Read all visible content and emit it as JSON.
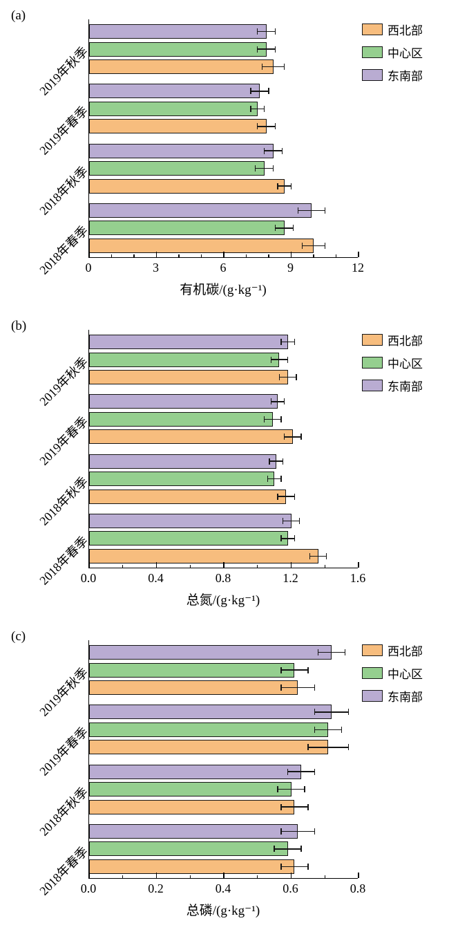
{
  "figure": {
    "panels": [
      "(a)",
      "(b)",
      "(c)"
    ]
  },
  "legend": {
    "position": "top-right",
    "items": [
      {
        "label": "西北部",
        "color": "#F7BD7E"
      },
      {
        "label": "中心区",
        "color": "#95CF8F"
      },
      {
        "label": "东南部",
        "color": "#B9ACD2"
      }
    ]
  },
  "chart_data": [
    {
      "type": "bar",
      "orientation": "horizontal",
      "panel": "(a)",
      "title": "",
      "xlabel": "有机碳/(g·kg⁻¹)",
      "ylabel": "",
      "xlim": [
        0,
        12
      ],
      "xticks": [
        0,
        3,
        6,
        9,
        12
      ],
      "xtick_labels": [
        "0",
        "3",
        "6",
        "9",
        "12"
      ],
      "minor_step": 1,
      "grid": false,
      "categories": [
        "2019年秋季",
        "2019年春季",
        "2018年秋季",
        "2018年春季"
      ],
      "series": [
        {
          "name": "西北部",
          "color": "#F7BD7E",
          "values": [
            8.2,
            7.9,
            8.7,
            10.0
          ],
          "errors": [
            0.5,
            0.4,
            0.3,
            0.5
          ]
        },
        {
          "name": "中心区",
          "color": "#95CF8F",
          "values": [
            7.9,
            7.5,
            7.8,
            8.7
          ],
          "errors": [
            0.4,
            0.3,
            0.4,
            0.4
          ]
        },
        {
          "name": "东南部",
          "color": "#B9ACD2",
          "values": [
            7.9,
            7.6,
            8.2,
            9.9
          ],
          "errors": [
            0.4,
            0.4,
            0.4,
            0.6
          ]
        }
      ]
    },
    {
      "type": "bar",
      "orientation": "horizontal",
      "panel": "(b)",
      "title": "",
      "xlabel": "总氮/(g·kg⁻¹)",
      "ylabel": "",
      "xlim": [
        0,
        1.6
      ],
      "xticks": [
        0,
        0.4,
        0.8,
        1.2,
        1.6
      ],
      "xtick_labels": [
        "0.0",
        "0.4",
        "0.8",
        "1.2",
        "1.6"
      ],
      "minor_step": 0.2,
      "grid": false,
      "categories": [
        "2019年秋季",
        "2019年春季",
        "2018年秋季",
        "2018年春季"
      ],
      "series": [
        {
          "name": "西北部",
          "color": "#F7BD7E",
          "values": [
            1.18,
            1.21,
            1.17,
            1.36
          ],
          "errors": [
            0.05,
            0.05,
            0.05,
            0.05
          ]
        },
        {
          "name": "中心区",
          "color": "#95CF8F",
          "values": [
            1.13,
            1.09,
            1.1,
            1.18
          ],
          "errors": [
            0.05,
            0.05,
            0.04,
            0.04
          ]
        },
        {
          "name": "东南部",
          "color": "#B9ACD2",
          "values": [
            1.18,
            1.12,
            1.11,
            1.2
          ],
          "errors": [
            0.04,
            0.04,
            0.04,
            0.05
          ]
        }
      ]
    },
    {
      "type": "bar",
      "orientation": "horizontal",
      "panel": "(c)",
      "title": "",
      "xlabel": "总磷/(g·kg⁻¹)",
      "ylabel": "",
      "xlim": [
        0,
        0.8
      ],
      "xticks": [
        0,
        0.2,
        0.4,
        0.6,
        0.8
      ],
      "xtick_labels": [
        "0.0",
        "0.2",
        "0.4",
        "0.6",
        "0.8"
      ],
      "minor_step": 0.1,
      "grid": false,
      "categories": [
        "2019年秋季",
        "2019年春季",
        "2018年秋季",
        "2018年春季"
      ],
      "series": [
        {
          "name": "西北部",
          "color": "#F7BD7E",
          "values": [
            0.62,
            0.71,
            0.61,
            0.61
          ],
          "errors": [
            0.05,
            0.06,
            0.04,
            0.04
          ]
        },
        {
          "name": "中心区",
          "color": "#95CF8F",
          "values": [
            0.61,
            0.71,
            0.6,
            0.59
          ],
          "errors": [
            0.04,
            0.04,
            0.04,
            0.04
          ]
        },
        {
          "name": "东南部",
          "color": "#B9ACD2",
          "values": [
            0.72,
            0.72,
            0.63,
            0.62
          ],
          "errors": [
            0.04,
            0.05,
            0.04,
            0.05
          ]
        }
      ]
    }
  ]
}
